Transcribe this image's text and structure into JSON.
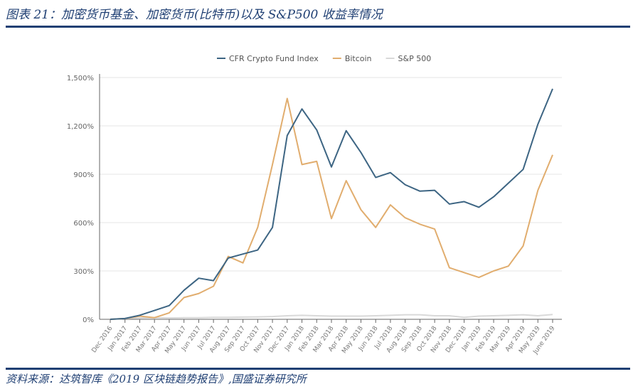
{
  "header": {
    "title": "图表 21：加密货币基金、加密货币(比特币)以及 S&P500 收益率情况"
  },
  "footer": {
    "source": "资料来源：达筑智库《2019 区块链趋势报告》,国盛证券研究所"
  },
  "chart_data": {
    "type": "line",
    "legend_position": "top-center",
    "grid": "horizontal",
    "ylim": [
      0,
      1500
    ],
    "yticks": [
      0,
      300,
      600,
      900,
      1200,
      1500
    ],
    "ytick_labels": [
      "0%",
      "300%",
      "600%",
      "900%",
      "1,200%",
      "1,500%"
    ],
    "categories": [
      "Dec 2016",
      "Jan 2017",
      "Feb 2017",
      "Mar 2017",
      "Apr 2017",
      "May 2017",
      "Jun 2017",
      "Jul 2017",
      "Aug 2017",
      "Sep 2017",
      "Oct 2017",
      "Nov 2017",
      "Dec 2017",
      "Jan 2018",
      "Feb 2018",
      "Mar 2018",
      "Apr 2018",
      "May 2018",
      "Jun 2018",
      "Jul 2018",
      "Aug 2018",
      "Sep 2018",
      "Oct 2018",
      "Nov 2018",
      "Dec 2018",
      "Jan 2019",
      "Feb 2019",
      "Mar 2019",
      "Apr 2019",
      "May 2019",
      "June 2019"
    ],
    "series": [
      {
        "name": "CFR Crypto Fund Index",
        "color": "#3d6583",
        "values": [
          0,
          5,
          25,
          55,
          85,
          180,
          255,
          240,
          380,
          405,
          430,
          570,
          1140,
          1305,
          1175,
          945,
          1170,
          1035,
          880,
          910,
          835,
          795,
          800,
          715,
          730,
          695,
          760,
          845,
          930,
          1210,
          1430
        ]
      },
      {
        "name": "Bitcoin",
        "color": "#e1ad6e",
        "values": [
          0,
          5,
          20,
          10,
          40,
          135,
          160,
          205,
          390,
          350,
          570,
          960,
          1370,
          960,
          980,
          625,
          860,
          680,
          570,
          710,
          630,
          590,
          560,
          320,
          290,
          260,
          300,
          330,
          455,
          800,
          1020
        ]
      },
      {
        "name": "S&P 500",
        "color": "#d9d9d9",
        "values": [
          0,
          5,
          8,
          10,
          8,
          10,
          10,
          12,
          12,
          14,
          15,
          17,
          22,
          25,
          22,
          20,
          20,
          20,
          22,
          25,
          28,
          28,
          22,
          22,
          12,
          20,
          22,
          25,
          28,
          22,
          30
        ]
      }
    ]
  }
}
